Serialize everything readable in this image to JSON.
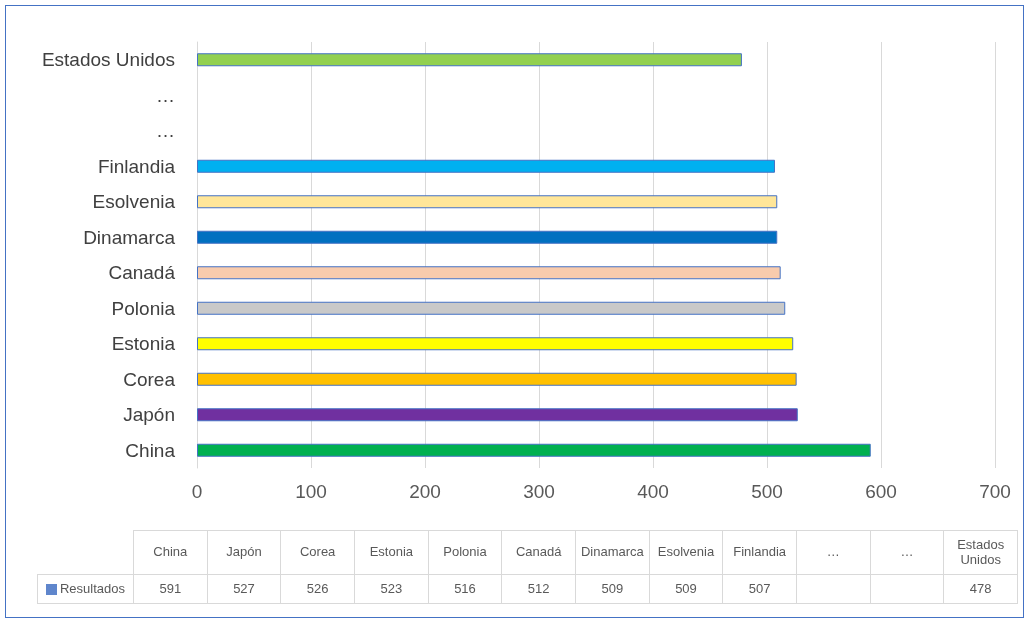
{
  "chart_data": [
    {
      "type": "bar",
      "orientation": "horizontal",
      "categories": [
        "Estados Unidos",
        "…",
        "…",
        "Finlandia",
        "Esolvenia",
        "Dinamarca",
        "Canadá",
        "Polonia",
        "Estonia",
        "Corea",
        "Japón",
        "China"
      ],
      "series": [
        {
          "color": "#4472c4",
          "values": [
            478,
            null,
            null,
            507,
            509,
            509,
            512,
            516,
            523,
            526,
            527,
            591
          ],
          "colors": [
            "#92d050",
            "#92d050",
            "#92d050",
            "#00b0f0",
            "#ffe699",
            "#0070c0",
            "#f8cbad",
            "#c9c9c9",
            "#ffff00",
            "#ffc000",
            "#7030a0",
            "#00b050"
          ]
        }
      ],
      "xlim": [
        0,
        700
      ],
      "xticks": [
        0,
        100,
        200,
        300,
        400,
        500,
        600,
        700
      ],
      "grid": "x"
    },
    {
      "type": "other",
      "categories": [
        "China",
        "Japón",
        "Corea",
        "Estonia",
        "Polonia",
        "Canadá",
        "Dinamarca",
        "Esolvenia",
        "Finlandia",
        "…",
        "…",
        "Estados Unidos"
      ],
      "series": [
        {
          "name": "Resultados",
          "color": "#4472c4",
          "values": [
            591,
            527,
            526,
            523,
            516,
            512,
            509,
            509,
            507,
            null,
            null,
            478
          ]
        }
      ],
      "legend": "bottom left",
      "data_labels": true
    }
  ]
}
